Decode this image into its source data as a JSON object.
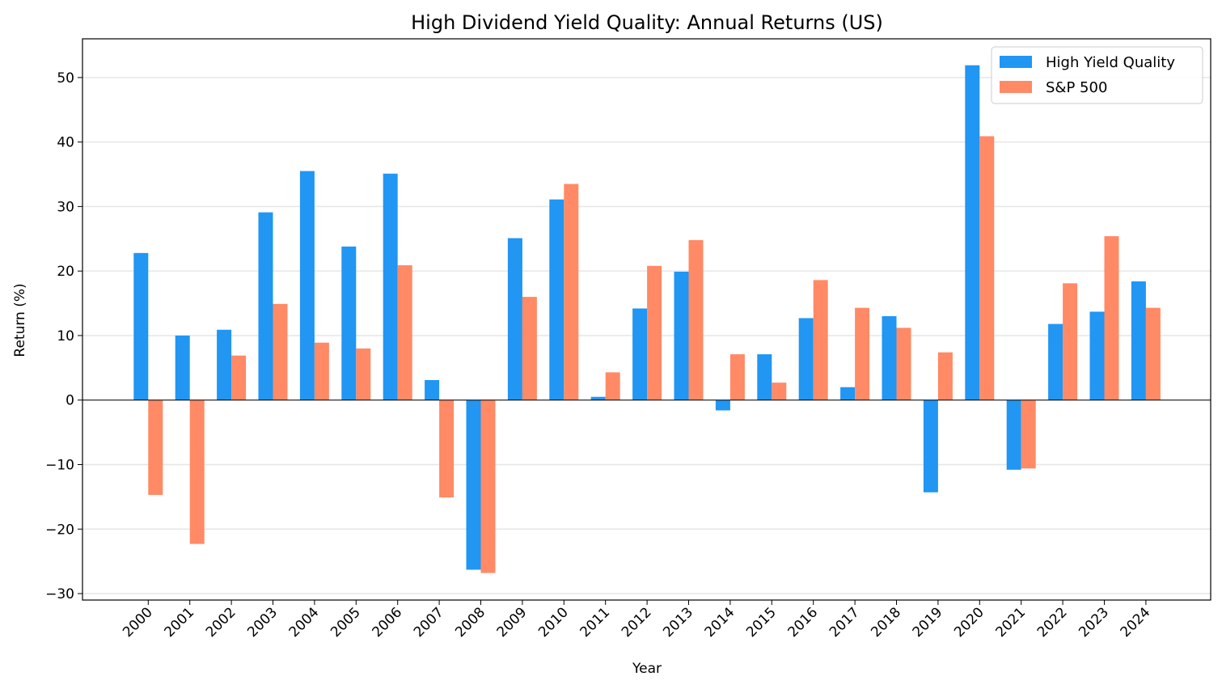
{
  "chart_data": {
    "type": "bar",
    "title": "High Dividend Yield Quality: Annual Returns (US)",
    "xlabel": "Year",
    "ylabel": "Return (%)",
    "ylim": [
      -31,
      56
    ],
    "yticks": [
      -30,
      -20,
      -10,
      0,
      10,
      20,
      30,
      40,
      50
    ],
    "grid": "horizontal",
    "legend_position": "top-right",
    "categories": [
      "2000",
      "2001",
      "2002",
      "2003",
      "2004",
      "2005",
      "2006",
      "2007",
      "2008",
      "2009",
      "2010",
      "2011",
      "2012",
      "2013",
      "2014",
      "2015",
      "2016",
      "2017",
      "2018",
      "2019",
      "2020",
      "2021",
      "2022",
      "2023",
      "2024"
    ],
    "series": [
      {
        "name": "High Yield Quality",
        "color": "#2196f3",
        "values": [
          22.8,
          10.0,
          10.9,
          29.1,
          35.5,
          23.8,
          35.1,
          3.1,
          -26.3,
          25.1,
          31.1,
          0.5,
          14.2,
          19.9,
          -1.6,
          7.1,
          12.7,
          2.0,
          13.0,
          -14.3,
          51.9,
          -10.8,
          11.8,
          13.7,
          18.4
        ]
      },
      {
        "name": "S&P 500",
        "color": "#ff8a65",
        "values": [
          -14.7,
          -22.3,
          6.9,
          14.9,
          8.9,
          8.0,
          20.9,
          -15.1,
          -26.8,
          16.0,
          33.5,
          4.3,
          20.8,
          24.8,
          7.1,
          2.7,
          18.6,
          14.3,
          11.2,
          7.4,
          40.9,
          -10.6,
          18.1,
          25.4,
          14.3
        ]
      }
    ]
  }
}
